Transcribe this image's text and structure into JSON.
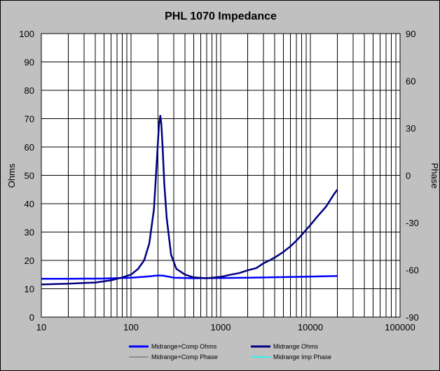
{
  "chart_data": {
    "type": "line",
    "title": "PHL 1070  Impedance",
    "xlabel": "",
    "ylabel": "Ohms",
    "y2label": "Phase",
    "x_scale": "log",
    "xlim": [
      10,
      100000
    ],
    "ylim": [
      0,
      100
    ],
    "y2lim": [
      -90,
      90
    ],
    "grid": true,
    "legend_position": "bottom",
    "x_ticks": [
      "10",
      "100",
      "1000",
      "10000",
      "100000"
    ],
    "y_ticks": [
      "0",
      "10",
      "20",
      "30",
      "40",
      "50",
      "60",
      "70",
      "80",
      "90",
      "100"
    ],
    "y2_ticks": [
      "-90",
      "-60",
      "-30",
      "0",
      "30",
      "60",
      "90"
    ],
    "series": [
      {
        "name": "Midrange+Comp Ohms",
        "color": "#0000ff",
        "width": 2.5,
        "axis": "left",
        "x": [
          10,
          20,
          50,
          100,
          150,
          200,
          230,
          300,
          500,
          1000,
          2000,
          5000,
          10000,
          20000
        ],
        "y": [
          13.5,
          13.5,
          13.6,
          13.9,
          14.3,
          14.7,
          14.6,
          13.9,
          13.7,
          13.8,
          13.9,
          14.1,
          14.3,
          14.5
        ]
      },
      {
        "name": "Midrange Ohms",
        "color": "#000080",
        "width": 2.5,
        "axis": "left",
        "x": [
          10,
          20,
          40,
          60,
          80,
          100,
          120,
          140,
          160,
          180,
          195,
          205,
          212,
          218,
          225,
          235,
          250,
          280,
          320,
          400,
          500,
          700,
          1000,
          1300,
          1600,
          2000,
          2500,
          3000,
          3500,
          4000,
          5000,
          6000,
          7000,
          8000,
          10000,
          12000,
          15000,
          18000,
          20000
        ],
        "y": [
          11.5,
          11.8,
          12.2,
          13.0,
          14.0,
          15.0,
          17.0,
          20.0,
          26.0,
          38.0,
          56.0,
          68.0,
          71.0,
          68.0,
          60.0,
          47.0,
          35.0,
          22.0,
          17.0,
          15.0,
          14.0,
          13.7,
          14.2,
          15.0,
          15.5,
          16.5,
          17.3,
          19.0,
          20.0,
          21.0,
          23.0,
          25.0,
          27.0,
          29.0,
          32.5,
          35.5,
          39.0,
          43.0,
          45.0
        ]
      },
      {
        "name": "Midrange+Comp Phase",
        "color": "#808080",
        "width": 1,
        "axis": "right",
        "x": [],
        "y": []
      },
      {
        "name": "Midrange Imp Phase",
        "color": "#00ffff",
        "width": 1,
        "axis": "right",
        "x": [],
        "y": []
      }
    ]
  }
}
